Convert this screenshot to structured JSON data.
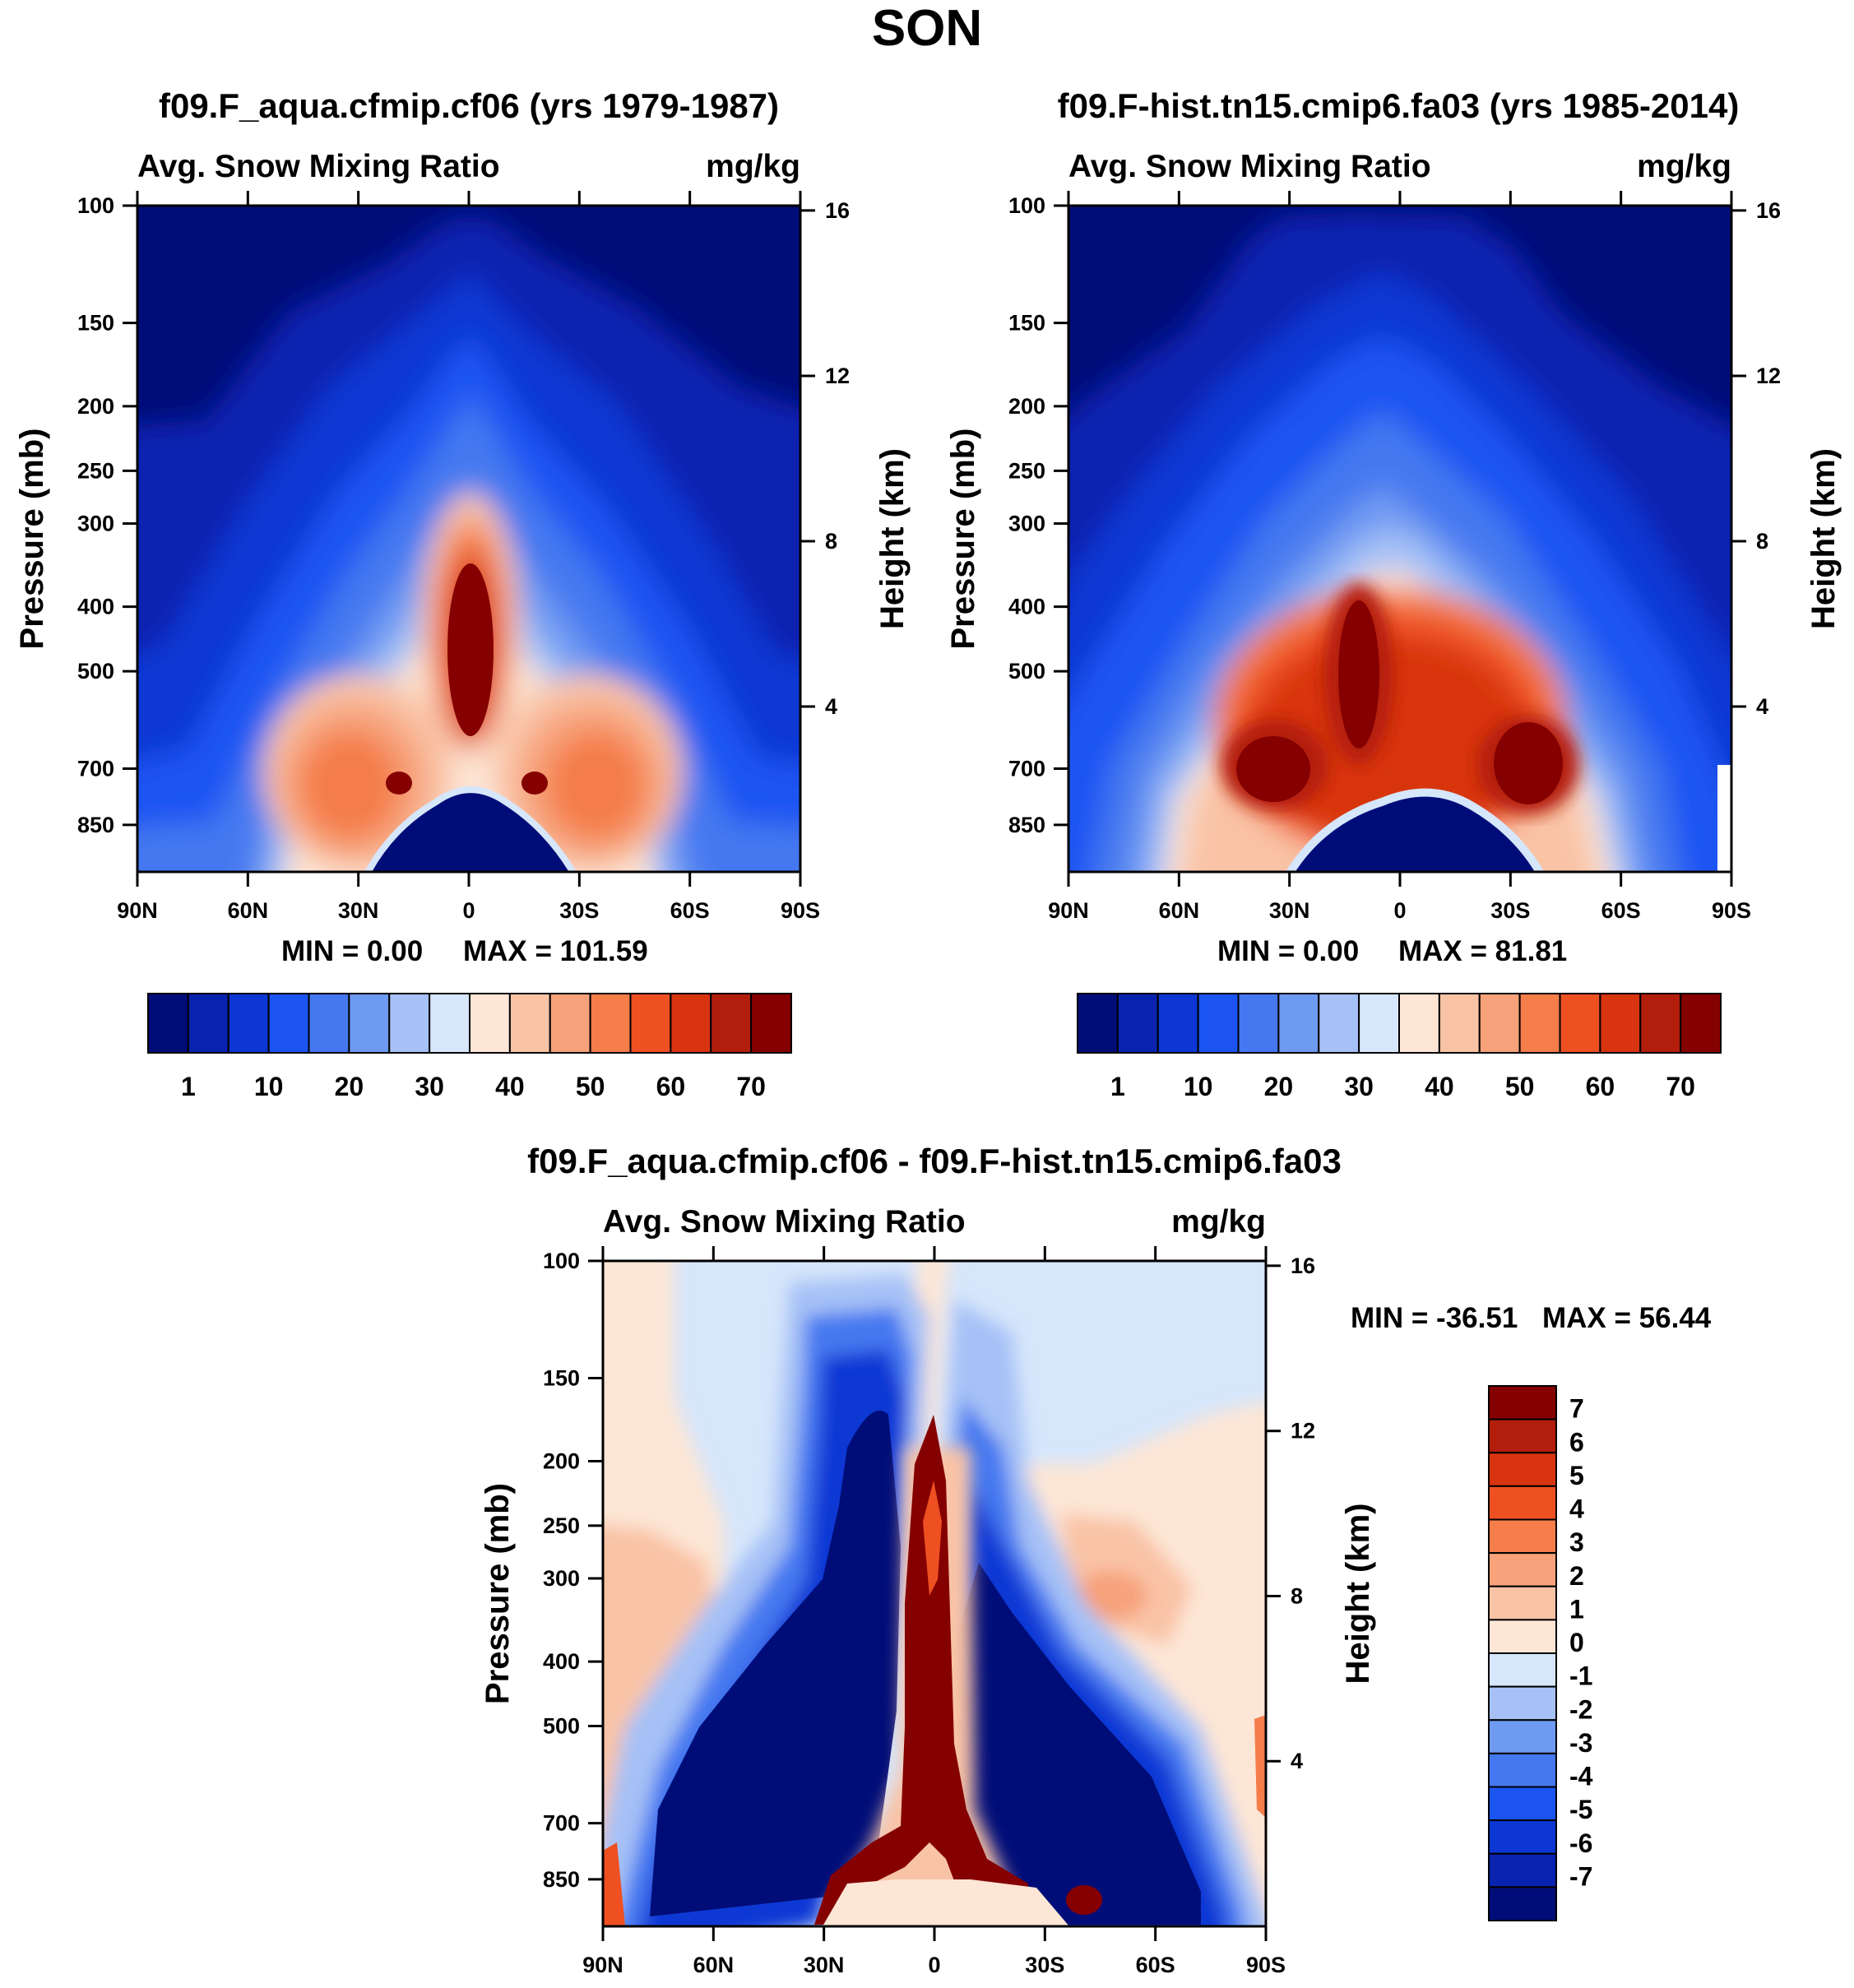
{
  "figure": {
    "title": "SON",
    "variable": "Avg. Snow Mixing Ratio",
    "units": "mg/kg"
  },
  "palettes": {
    "abs": [
      "#000d78",
      "#0a22b0",
      "#0c37d4",
      "#1c54f2",
      "#4578f0",
      "#6f9af2",
      "#a6c1f6",
      "#d6e6fb",
      "#fde6d6",
      "#f9c3a6",
      "#f7a27a",
      "#f47d4a",
      "#ee5022",
      "#d8340f",
      "#b31e0c",
      "#850000"
    ],
    "diff": [
      "#850000",
      "#b31e0c",
      "#d8340f",
      "#ee5022",
      "#f47d4a",
      "#f7a27a",
      "#f9c3a6",
      "#fde6d6",
      "#d6e6fb",
      "#a6c1f6",
      "#6f9af2",
      "#4578f0",
      "#1c54f2",
      "#0c37d4",
      "#0a22b0",
      "#000d78"
    ]
  },
  "chart_data": [
    {
      "type": "heatmap",
      "id": "panel1",
      "title": "f09.F_aqua.cfmip.cf06 (yrs 1979-1987)",
      "subtitle_left": "Avg. Snow Mixing Ratio",
      "subtitle_right": "mg/kg",
      "xlabel": "",
      "ylabel": "Pressure (mb)",
      "ylabel_right": "Height (km)",
      "x_ticks": [
        "90N",
        "60N",
        "30N",
        "0",
        "30S",
        "60S",
        "90S"
      ],
      "y_ticks": [
        100,
        150,
        200,
        250,
        300,
        400,
        500,
        700,
        850
      ],
      "height_ticks": [
        16,
        12,
        8,
        4
      ],
      "ylim": [
        100,
        1000
      ],
      "min_text": "MIN =   0.00",
      "max_text": "MAX = 101.59",
      "colorbar": {
        "orientation": "horizontal",
        "labels": [
          "1",
          "10",
          "20",
          "30",
          "40",
          "50",
          "60",
          "70"
        ]
      }
    },
    {
      "type": "heatmap",
      "id": "panel2",
      "title": "f09.F-hist.tn15.cmip6.fa03 (yrs 1985-2014)",
      "subtitle_left": "Avg. Snow Mixing Ratio",
      "subtitle_right": "mg/kg",
      "xlabel": "",
      "ylabel": "Pressure (mb)",
      "ylabel_right": "Height (km)",
      "x_ticks": [
        "90N",
        "60N",
        "30N",
        "0",
        "30S",
        "60S",
        "90S"
      ],
      "y_ticks": [
        100,
        150,
        200,
        250,
        300,
        400,
        500,
        700,
        850
      ],
      "height_ticks": [
        16,
        12,
        8,
        4
      ],
      "ylim": [
        100,
        1000
      ],
      "min_text": "MIN =   0.00",
      "max_text": "MAX =  81.81",
      "colorbar": {
        "orientation": "horizontal",
        "labels": [
          "1",
          "10",
          "20",
          "30",
          "40",
          "50",
          "60",
          "70"
        ]
      }
    },
    {
      "type": "heatmap",
      "id": "panel3",
      "title": "f09.F_aqua.cfmip.cf06 - f09.F-hist.tn15.cmip6.fa03",
      "subtitle_left": "Avg. Snow Mixing Ratio",
      "subtitle_right": "mg/kg",
      "xlabel": "",
      "ylabel": "Pressure (mb)",
      "ylabel_right": "Height (km)",
      "x_ticks": [
        "90N",
        "60N",
        "30N",
        "0",
        "30S",
        "60S",
        "90S"
      ],
      "y_ticks": [
        100,
        150,
        200,
        250,
        300,
        400,
        500,
        700,
        850
      ],
      "height_ticks": [
        16,
        12,
        8,
        4
      ],
      "ylim": [
        100,
        1000
      ],
      "min_text": "MIN = -36.51",
      "max_text": "MAX =  56.44",
      "colorbar": {
        "orientation": "vertical",
        "labels": [
          "7",
          "6",
          "5",
          "4",
          "3",
          "2",
          "1",
          "0",
          "-1",
          "-2",
          "-3",
          "-4",
          "-5",
          "-6",
          "-7"
        ]
      }
    }
  ]
}
